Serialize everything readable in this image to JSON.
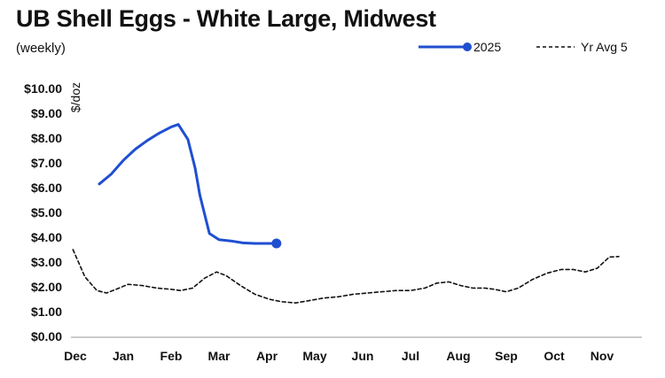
{
  "chart_data": {
    "type": "line",
    "title": "UB Shell Eggs - White Large, Midwest",
    "subtitle": "(weekly)",
    "ylabel": "$/doz",
    "xlabel": "",
    "ylim": [
      0,
      10
    ],
    "yticks": [
      "$0.00",
      "$1.00",
      "$2.00",
      "$3.00",
      "$4.00",
      "$5.00",
      "$6.00",
      "$7.00",
      "$8.00",
      "$9.00",
      "$10.00"
    ],
    "categories": [
      "Dec",
      "Jan",
      "Feb",
      "Mar",
      "Apr",
      "May",
      "Jun",
      "Jul",
      "Aug",
      "Sep",
      "Oct",
      "Nov"
    ],
    "grid": false,
    "legend_position": "top-right",
    "series": [
      {
        "name": "2025",
        "color": "#1f4fd1",
        "style": "solid",
        "end_marker": true,
        "points": [
          [
            0.5,
            6.15
          ],
          [
            0.75,
            6.55
          ],
          [
            1.0,
            7.1
          ],
          [
            1.25,
            7.55
          ],
          [
            1.5,
            7.9
          ],
          [
            1.75,
            8.2
          ],
          [
            2.0,
            8.45
          ],
          [
            2.15,
            8.55
          ],
          [
            2.35,
            7.95
          ],
          [
            2.5,
            6.8
          ],
          [
            2.6,
            5.7
          ],
          [
            2.8,
            4.15
          ],
          [
            3.0,
            3.9
          ],
          [
            3.25,
            3.85
          ],
          [
            3.5,
            3.77
          ],
          [
            3.75,
            3.75
          ],
          [
            4.0,
            3.75
          ],
          [
            4.2,
            3.75
          ]
        ]
      },
      {
        "name": "Yr Avg 5",
        "color": "#111111",
        "style": "dashed",
        "end_marker": false,
        "points": [
          [
            -0.05,
            3.5
          ],
          [
            0.2,
            2.4
          ],
          [
            0.45,
            1.85
          ],
          [
            0.65,
            1.75
          ],
          [
            0.85,
            1.9
          ],
          [
            1.1,
            2.1
          ],
          [
            1.4,
            2.05
          ],
          [
            1.7,
            1.95
          ],
          [
            2.0,
            1.9
          ],
          [
            2.2,
            1.85
          ],
          [
            2.45,
            1.95
          ],
          [
            2.7,
            2.35
          ],
          [
            2.95,
            2.6
          ],
          [
            3.15,
            2.45
          ],
          [
            3.45,
            2.05
          ],
          [
            3.75,
            1.7
          ],
          [
            4.05,
            1.5
          ],
          [
            4.3,
            1.4
          ],
          [
            4.6,
            1.35
          ],
          [
            4.9,
            1.45
          ],
          [
            5.2,
            1.55
          ],
          [
            5.5,
            1.6
          ],
          [
            5.8,
            1.7
          ],
          [
            6.1,
            1.75
          ],
          [
            6.4,
            1.8
          ],
          [
            6.7,
            1.85
          ],
          [
            7.0,
            1.85
          ],
          [
            7.3,
            1.95
          ],
          [
            7.55,
            2.15
          ],
          [
            7.8,
            2.2
          ],
          [
            8.05,
            2.05
          ],
          [
            8.3,
            1.95
          ],
          [
            8.55,
            1.95
          ],
          [
            8.75,
            1.9
          ],
          [
            9.0,
            1.8
          ],
          [
            9.25,
            1.95
          ],
          [
            9.55,
            2.3
          ],
          [
            9.85,
            2.55
          ],
          [
            10.15,
            2.7
          ],
          [
            10.4,
            2.7
          ],
          [
            10.65,
            2.6
          ],
          [
            10.9,
            2.75
          ],
          [
            11.15,
            3.2
          ],
          [
            11.35,
            3.22
          ]
        ]
      }
    ]
  }
}
